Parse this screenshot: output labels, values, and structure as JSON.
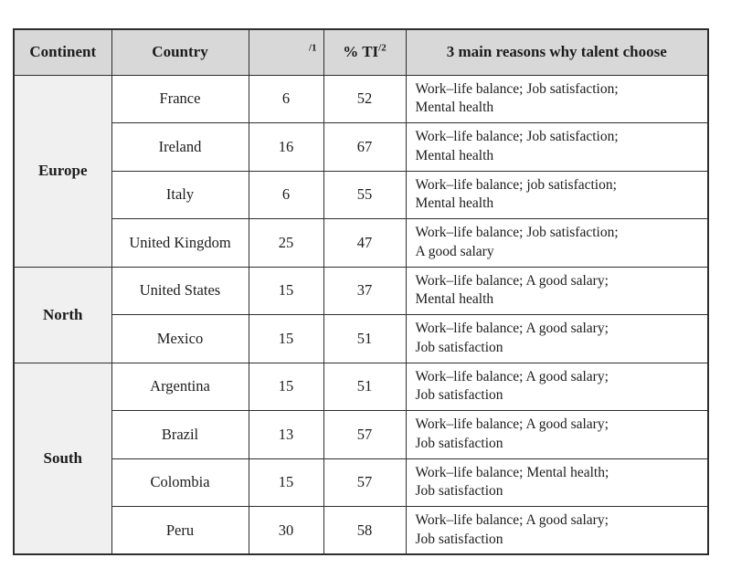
{
  "table": {
    "header": {
      "continent": "Continent",
      "country": "Country",
      "col3_footnote": "/1",
      "ti_label": "% TI",
      "ti_footnote": "/2",
      "reasons": "3 main reasons why talent choose"
    },
    "groups": [
      {
        "continent": "Europe",
        "rows": [
          {
            "country": "France",
            "value1": "6",
            "ti": "52",
            "reasons": [
              "Work–life balance; Job satisfaction;",
              "Mental health"
            ]
          },
          {
            "country": "Ireland",
            "value1": "16",
            "ti": "67",
            "reasons": [
              "Work–life balance; Job satisfaction;",
              "Mental health"
            ]
          },
          {
            "country": "Italy",
            "value1": "6",
            "ti": "55",
            "reasons": [
              "Work–life balance; job satisfaction;",
              "Mental health"
            ]
          },
          {
            "country": "United Kingdom",
            "value1": "25",
            "ti": "47",
            "reasons": [
              "Work–life balance; Job satisfaction;",
              "A good salary"
            ]
          }
        ]
      },
      {
        "continent": "North",
        "rows": [
          {
            "country": "United States",
            "value1": "15",
            "ti": "37",
            "reasons": [
              "Work–life balance; A good salary;",
              "Mental health"
            ]
          },
          {
            "country": "Mexico",
            "value1": "15",
            "ti": "51",
            "reasons": [
              "Work–life balance; A good salary;",
              "Job satisfaction"
            ]
          }
        ]
      },
      {
        "continent": "South",
        "rows": [
          {
            "country": "Argentina",
            "value1": "15",
            "ti": "51",
            "reasons": [
              "Work–life balance; A good salary;",
              "Job satisfaction"
            ]
          },
          {
            "country": "Brazil",
            "value1": "13",
            "ti": "57",
            "reasons": [
              "Work–life balance; A good salary;",
              "Job satisfaction"
            ]
          },
          {
            "country": "Colombia",
            "value1": "15",
            "ti": "57",
            "reasons": [
              "Work–life balance; Mental health;",
              "Job satisfaction"
            ]
          },
          {
            "country": "Peru",
            "value1": "30",
            "ti": "58",
            "reasons": [
              "Work–life balance; A good salary;",
              "Job satisfaction"
            ]
          }
        ]
      }
    ],
    "colors": {
      "header_bg": "#d8d8d8",
      "continent_bg": "#f0f0f0",
      "border": "#2e2e2e",
      "text": "#1c1c1c",
      "page_bg": "#ffffff"
    }
  }
}
